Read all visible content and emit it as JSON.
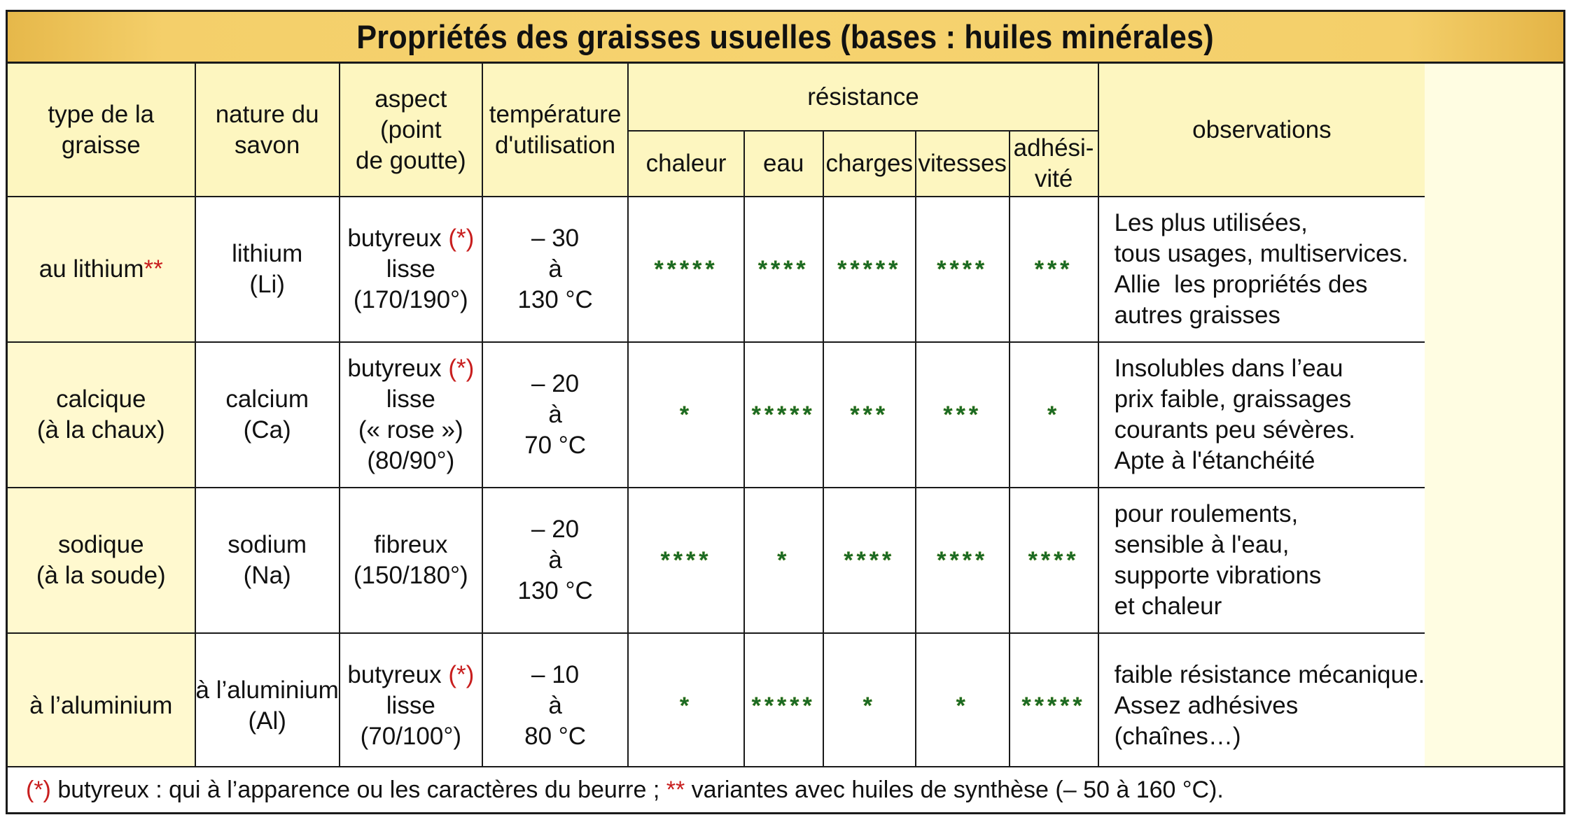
{
  "title": "Propriétés des graisses usuelles (bases : huiles minérales)",
  "headers": {
    "type": "type de la|graisse",
    "savon": "nature du|savon",
    "aspect": "aspect|(point|de goutte)",
    "temperature": "température|d'utilisation",
    "resistance": "résistance",
    "chaleur": "chaleur",
    "eau": "eau",
    "charges": "charges",
    "vitesses": "vitesses",
    "adhesivite": "adhési-|vité",
    "observations": "observations"
  },
  "rows": [
    {
      "type_text": "au lithium",
      "type_mark": "**",
      "savon": [
        "lithium",
        "(Li)"
      ],
      "aspect": [
        {
          "text": "butyreux ",
          "mark": "(*)"
        },
        {
          "text": "lisse",
          "mark": ""
        },
        {
          "text": "(170/190°)",
          "mark": ""
        }
      ],
      "temp": [
        "– 30",
        "à",
        "130 °C"
      ],
      "chaleur": "*****",
      "eau": "****",
      "charges": "*****",
      "vitesses": "****",
      "adhesivite": "***",
      "observations": [
        "Les plus utilisées,",
        "tous usages, multiservices.",
        "Allie  les propriétés des",
        "autres graisses"
      ]
    },
    {
      "type_text": "calcique|(à la chaux)",
      "type_mark": "",
      "savon": [
        "calcium",
        "(Ca)"
      ],
      "aspect": [
        {
          "text": "butyreux ",
          "mark": "(*)"
        },
        {
          "text": "lisse",
          "mark": ""
        },
        {
          "text": "(« rose »)",
          "mark": ""
        },
        {
          "text": "(80/90°)",
          "mark": ""
        }
      ],
      "temp": [
        "– 20",
        "à",
        "70 °C"
      ],
      "chaleur": "*",
      "eau": "*****",
      "charges": "***",
      "vitesses": "***",
      "adhesivite": "*",
      "observations": [
        "Insolubles dans l’eau",
        "prix faible, graissages",
        "courants peu sévères.",
        "Apte à l'étanchéité"
      ]
    },
    {
      "type_text": "sodique|(à la soude)",
      "type_mark": "",
      "savon": [
        "sodium",
        "(Na)"
      ],
      "aspect": [
        {
          "text": "fibreux",
          "mark": ""
        },
        {
          "text": "(150/180°)",
          "mark": ""
        }
      ],
      "temp": [
        "– 20",
        "à",
        "130 °C"
      ],
      "chaleur": "****",
      "eau": "*",
      "charges": "****",
      "vitesses": "****",
      "adhesivite": "****",
      "observations": [
        "pour roulements,",
        "sensible à l'eau,",
        "supporte vibrations",
        "et chaleur"
      ]
    },
    {
      "type_text": "à l’aluminium",
      "type_mark": "",
      "savon": [
        "à l’aluminium",
        "(Al)"
      ],
      "aspect": [
        {
          "text": "butyreux ",
          "mark": "(*)"
        },
        {
          "text": "lisse",
          "mark": ""
        },
        {
          "text": "(70/100°)",
          "mark": ""
        }
      ],
      "temp": [
        "– 10",
        "à",
        "80 °C"
      ],
      "chaleur": "*",
      "eau": "*****",
      "charges": "*",
      "vitesses": "*",
      "adhesivite": "*****",
      "observations": [
        "faible résistance mécanique.",
        "Assez adhésives",
        "(chaînes…)"
      ]
    }
  ],
  "footer": {
    "mark1": "(*)",
    "text1": " butyreux : qui à l’apparence ou les caractères du beurre ; ",
    "mark2": "**",
    "text2": " variantes avec huiles de synthèse (– 50 à 160 °C)."
  }
}
